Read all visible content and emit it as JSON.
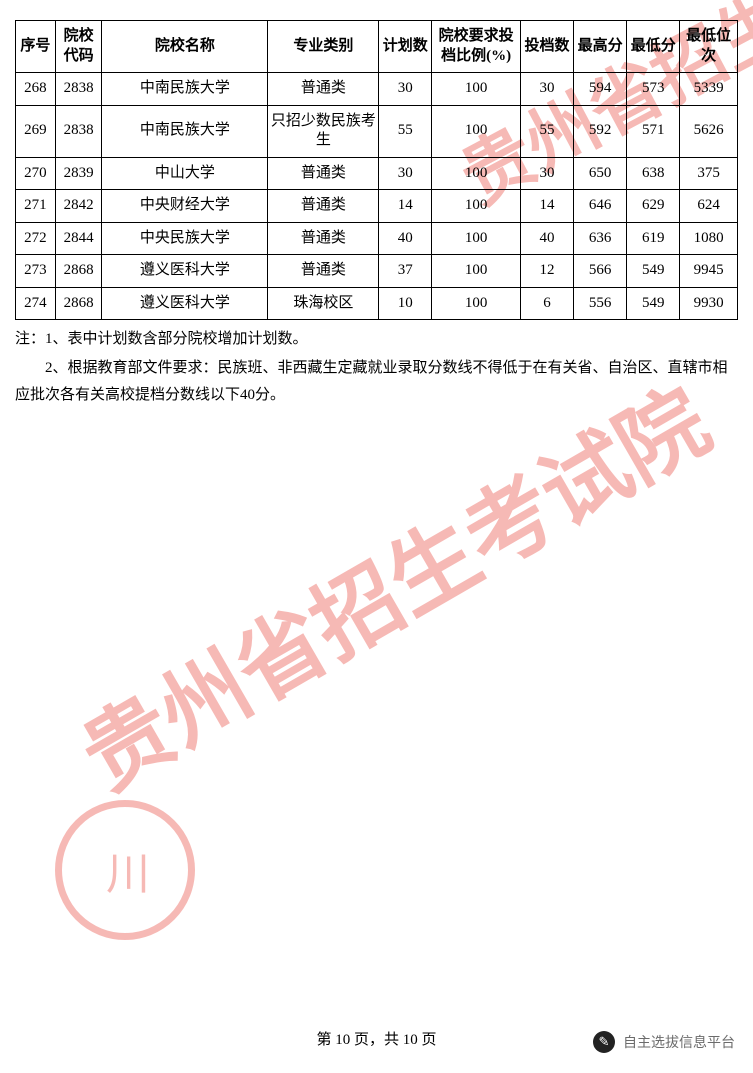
{
  "watermark_text": "贵州省招生考试院",
  "watermark_color": "#e83a2e",
  "table": {
    "headers": {
      "seq": "序号",
      "code": "院校代码",
      "name": "院校名称",
      "type": "专业类别",
      "plan": "计划数",
      "ratio": "院校要求投档比例(%)",
      "cnt": "投档数",
      "max": "最高分",
      "min": "最低分",
      "rank": "最低位次"
    },
    "rows": [
      {
        "seq": "268",
        "code": "2838",
        "name": "中南民族大学",
        "type": "普通类",
        "plan": "30",
        "ratio": "100",
        "cnt": "30",
        "max": "594",
        "min": "573",
        "rank": "5339"
      },
      {
        "seq": "269",
        "code": "2838",
        "name": "中南民族大学",
        "type": "只招少数民族考生",
        "plan": "55",
        "ratio": "100",
        "cnt": "55",
        "max": "592",
        "min": "571",
        "rank": "5626"
      },
      {
        "seq": "270",
        "code": "2839",
        "name": "中山大学",
        "type": "普通类",
        "plan": "30",
        "ratio": "100",
        "cnt": "30",
        "max": "650",
        "min": "638",
        "rank": "375"
      },
      {
        "seq": "271",
        "code": "2842",
        "name": "中央财经大学",
        "type": "普通类",
        "plan": "14",
        "ratio": "100",
        "cnt": "14",
        "max": "646",
        "min": "629",
        "rank": "624"
      },
      {
        "seq": "272",
        "code": "2844",
        "name": "中央民族大学",
        "type": "普通类",
        "plan": "40",
        "ratio": "100",
        "cnt": "40",
        "max": "636",
        "min": "619",
        "rank": "1080"
      },
      {
        "seq": "273",
        "code": "2868",
        "name": "遵义医科大学",
        "type": "普通类",
        "plan": "37",
        "ratio": "100",
        "cnt": "12",
        "max": "566",
        "min": "549",
        "rank": "9945"
      },
      {
        "seq": "274",
        "code": "2868",
        "name": "遵义医科大学",
        "type": "珠海校区",
        "plan": "10",
        "ratio": "100",
        "cnt": "6",
        "max": "556",
        "min": "549",
        "rank": "9930"
      }
    ]
  },
  "notes": {
    "line1": "注：1、表中计划数含部分院校增加计划数。",
    "line2": "2、根据教育部文件要求：民族班、非西藏生定藏就业录取分数线不得低于在有关省、自治区、直辖市相应批次各有关高校提档分数线以下40分。"
  },
  "pager": "第 10 页，共 10 页",
  "source_badge": "自主选拔信息平台",
  "stamp_glyph": "川"
}
